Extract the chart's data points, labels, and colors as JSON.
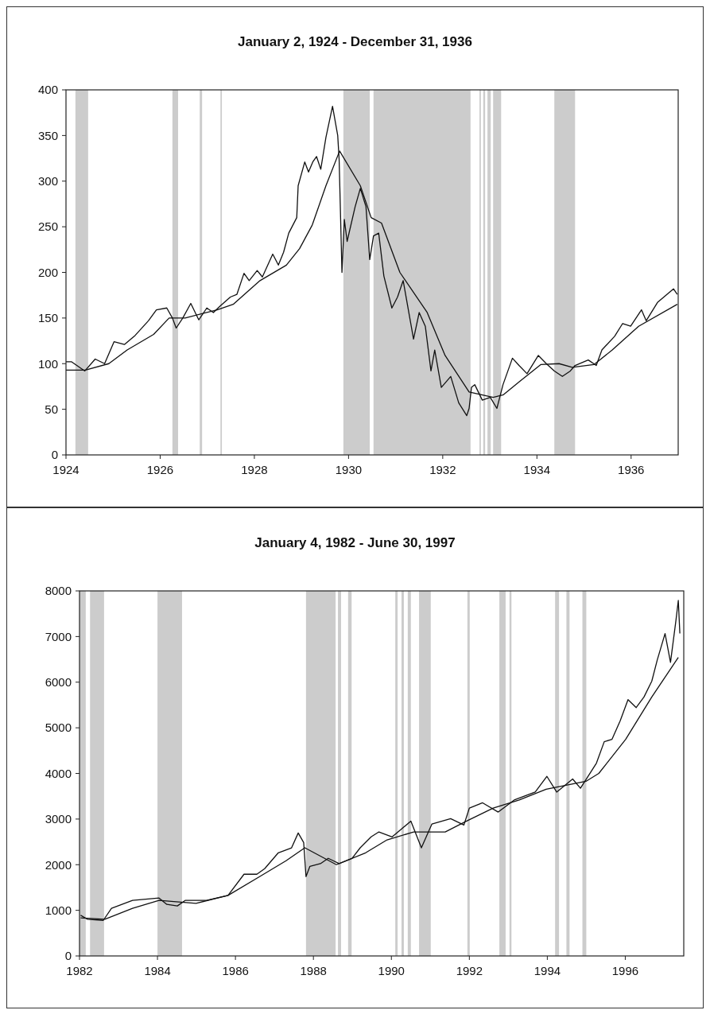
{
  "chart_data": [
    {
      "type": "line",
      "title": "January 2, 1924 - December 31, 1936",
      "xlim": [
        1924,
        1937
      ],
      "xticks": [
        1924,
        1926,
        1928,
        1930,
        1932,
        1934,
        1936
      ],
      "ylim": [
        0,
        400
      ],
      "yticks": [
        0,
        50,
        100,
        150,
        200,
        250,
        300,
        350,
        400
      ],
      "series": [
        {
          "color": "#111111",
          "x": [
            1924.0,
            1924.12,
            1924.4,
            1924.62,
            1924.82,
            1925.02,
            1925.24,
            1925.47,
            1925.75,
            1925.92,
            1926.14,
            1926.26,
            1926.34,
            1926.48,
            1926.65,
            1926.82,
            1926.99,
            1927.13,
            1927.27,
            1927.49,
            1927.63,
            1927.78,
            1927.89,
            1928.06,
            1928.17,
            1928.39,
            1928.51,
            1928.62,
            1928.73,
            1928.9,
            1928.93,
            1929.07,
            1929.15,
            1929.24,
            1929.32,
            1929.41,
            1929.52,
            1929.66,
            1929.77,
            1929.8,
            1929.86,
            1929.91,
            1929.97,
            1930.14,
            1930.25,
            1930.37,
            1930.45,
            1930.53,
            1930.64,
            1930.75,
            1930.92,
            1931.04,
            1931.16,
            1931.38,
            1931.5,
            1931.63,
            1931.75,
            1931.83,
            1931.97,
            1932.17,
            1932.34,
            1932.51,
            1932.56,
            1932.61,
            1932.68,
            1932.84,
            1933.01,
            1933.15,
            1933.28,
            1933.48,
            1933.62,
            1933.79,
            1934.03,
            1934.2,
            1934.37,
            1934.54,
            1934.71,
            1934.81,
            1935.09,
            1935.26,
            1935.38,
            1935.65,
            1935.82,
            1935.99,
            1936.22,
            1936.32,
            1936.56,
            1936.9,
            1936.98
          ],
          "values": [
            102,
            102,
            92,
            105,
            100,
            124,
            121,
            131,
            147,
            159,
            161,
            150,
            139,
            150,
            166,
            148,
            161,
            156,
            163,
            173,
            176,
            199,
            191,
            202,
            195,
            220,
            208,
            222,
            243,
            260,
            295,
            321,
            310,
            321,
            327,
            313,
            348,
            382,
            350,
            324,
            200,
            258,
            234,
            272,
            292,
            272,
            214,
            240,
            243,
            196,
            161,
            173,
            191,
            127,
            156,
            141,
            92,
            115,
            74,
            86,
            57,
            43,
            51,
            74,
            77,
            60,
            63,
            51,
            77,
            106,
            98,
            89,
            109,
            100,
            92,
            86,
            92,
            98,
            104,
            98,
            115,
            130,
            144,
            141,
            159,
            147,
            167,
            182,
            176
          ]
        },
        {
          "color": "#111111",
          "x": [
            1924.0,
            1924.41,
            1924.91,
            1925.3,
            1925.86,
            1926.19,
            1926.53,
            1927.21,
            1927.55,
            1928.12,
            1928.68,
            1928.96,
            1929.23,
            1929.52,
            1929.81,
            1930.25,
            1930.48,
            1930.7,
            1931.09,
            1931.67,
            1932.05,
            1932.56,
            1933.07,
            1933.29,
            1933.62,
            1934.08,
            1934.47,
            1934.75,
            1935.21,
            1935.6,
            1936.16,
            1936.98
          ],
          "values": [
            93,
            93,
            100,
            115,
            132,
            150,
            150,
            159,
            165,
            191,
            208,
            226,
            252,
            295,
            333,
            295,
            260,
            254,
            200,
            156,
            109,
            69,
            63,
            66,
            80,
            99,
            100,
            96,
            99,
            115,
            141,
            165
          ]
        }
      ],
      "bands": [
        {
          "axis": "x",
          "from": 1924.2,
          "to": 1924.47,
          "color": "#cccccc"
        },
        {
          "axis": "x",
          "from": 1926.26,
          "to": 1926.38,
          "color": "#cccccc"
        },
        {
          "axis": "x",
          "from": 1926.84,
          "to": 1926.89,
          "color": "#cccccc"
        },
        {
          "axis": "x",
          "from": 1927.28,
          "to": 1927.31,
          "color": "#cccccc"
        },
        {
          "axis": "x",
          "from": 1929.89,
          "to": 1930.45,
          "color": "#cccccc"
        },
        {
          "axis": "x",
          "from": 1930.53,
          "to": 1932.59,
          "color": "#cccccc"
        },
        {
          "axis": "x",
          "from": 1932.78,
          "to": 1932.81,
          "color": "#cccccc"
        },
        {
          "axis": "x",
          "from": 1932.86,
          "to": 1932.9,
          "color": "#cccccc"
        },
        {
          "axis": "x",
          "from": 1932.95,
          "to": 1933.02,
          "color": "#cccccc"
        },
        {
          "axis": "x",
          "from": 1933.07,
          "to": 1933.24,
          "color": "#cccccc"
        },
        {
          "axis": "x",
          "from": 1934.37,
          "to": 1934.81,
          "color": "#cccccc"
        }
      ]
    },
    {
      "type": "line",
      "title": "January 4, 1982 - June 30, 1997",
      "xlim": [
        1982,
        1997.5
      ],
      "xticks": [
        1982,
        1984,
        1986,
        1988,
        1990,
        1992,
        1994,
        1996
      ],
      "ylim": [
        0,
        8000
      ],
      "yticks": [
        0,
        1000,
        2000,
        3000,
        4000,
        5000,
        6000,
        7000,
        8000
      ],
      "series": [
        {
          "color": "#111111",
          "x": [
            1982.03,
            1982.2,
            1982.61,
            1982.82,
            1983.36,
            1984.04,
            1984.24,
            1984.51,
            1984.71,
            1985.26,
            1985.81,
            1986.22,
            1986.55,
            1986.75,
            1987.1,
            1987.44,
            1987.61,
            1987.75,
            1987.81,
            1987.91,
            1988.18,
            1988.38,
            1988.66,
            1988.99,
            1989.2,
            1989.48,
            1989.68,
            1990.02,
            1990.5,
            1990.77,
            1991.04,
            1991.52,
            1991.86,
            1992.0,
            1992.34,
            1992.74,
            1993.15,
            1993.69,
            1993.99,
            1994.24,
            1994.65,
            1994.85,
            1995.26,
            1995.46,
            1995.66,
            1995.87,
            1996.07,
            1996.28,
            1996.48,
            1996.68,
            1996.82,
            1997.02,
            1997.16,
            1997.3,
            1997.36,
            1997.4
          ],
          "values": [
            892,
            805,
            780,
            1043,
            1217,
            1269,
            1130,
            1096,
            1217,
            1217,
            1327,
            1791,
            1791,
            1913,
            2261,
            2370,
            2695,
            2487,
            1739,
            1965,
            2023,
            2139,
            2023,
            2139,
            2370,
            2609,
            2718,
            2609,
            2956,
            2370,
            2892,
            3009,
            2869,
            3240,
            3356,
            3153,
            3417,
            3591,
            3935,
            3591,
            3878,
            3675,
            4226,
            4695,
            4748,
            5153,
            5617,
            5443,
            5675,
            6022,
            6486,
            7066,
            6434,
            7356,
            7791,
            7066
          ]
        },
        {
          "color": "#111111",
          "x": [
            1982.03,
            1982.65,
            1983.36,
            1984.04,
            1984.99,
            1985.81,
            1986.62,
            1987.3,
            1987.78,
            1988.59,
            1989.34,
            1989.89,
            1990.57,
            1991.38,
            1991.93,
            1992.61,
            1993.28,
            1993.97,
            1994.99,
            1995.32,
            1996.01,
            1996.68,
            1997.36
          ],
          "values": [
            835,
            805,
            1043,
            1217,
            1153,
            1327,
            1739,
            2087,
            2370,
            2000,
            2261,
            2544,
            2718,
            2718,
            2956,
            3240,
            3417,
            3652,
            3826,
            4000,
            4748,
            5675,
            6544
          ]
        }
      ],
      "bands": [
        {
          "axis": "x",
          "from": 1982.0,
          "to": 1982.16,
          "color": "#cccccc"
        },
        {
          "axis": "x",
          "from": 1982.27,
          "to": 1982.63,
          "color": "#cccccc"
        },
        {
          "axis": "x",
          "from": 1984.0,
          "to": 1984.63,
          "color": "#cccccc"
        },
        {
          "axis": "x",
          "from": 1987.81,
          "to": 1988.57,
          "color": "#cccccc"
        },
        {
          "axis": "x",
          "from": 1988.63,
          "to": 1988.71,
          "color": "#cccccc"
        },
        {
          "axis": "x",
          "from": 1988.89,
          "to": 1988.98,
          "color": "#cccccc"
        },
        {
          "axis": "x",
          "from": 1990.1,
          "to": 1990.16,
          "color": "#cccccc"
        },
        {
          "axis": "x",
          "from": 1990.26,
          "to": 1990.32,
          "color": "#cccccc"
        },
        {
          "axis": "x",
          "from": 1990.42,
          "to": 1990.5,
          "color": "#cccccc"
        },
        {
          "axis": "x",
          "from": 1990.71,
          "to": 1991.01,
          "color": "#cccccc"
        },
        {
          "axis": "x",
          "from": 1991.95,
          "to": 1992.01,
          "color": "#cccccc"
        },
        {
          "axis": "x",
          "from": 1992.77,
          "to": 1992.93,
          "color": "#cccccc"
        },
        {
          "axis": "x",
          "from": 1993.03,
          "to": 1993.08,
          "color": "#cccccc"
        },
        {
          "axis": "x",
          "from": 1994.2,
          "to": 1994.3,
          "color": "#cccccc"
        },
        {
          "axis": "x",
          "from": 1994.49,
          "to": 1994.57,
          "color": "#cccccc"
        },
        {
          "axis": "x",
          "from": 1994.9,
          "to": 1995.0,
          "color": "#cccccc"
        }
      ]
    }
  ]
}
